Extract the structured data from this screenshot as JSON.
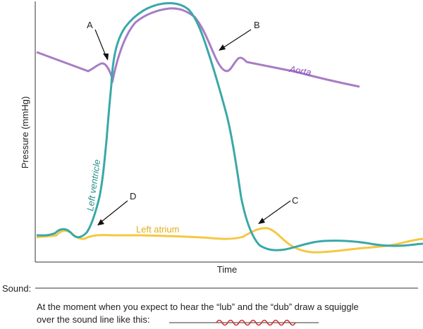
{
  "axes": {
    "ylabel": "Pressure (mmHg)",
    "xlabel": "Time"
  },
  "curves": {
    "aorta": {
      "label": "Aorta",
      "color": "#a87cc5"
    },
    "ventricle": {
      "label": "Left ventricle",
      "color": "#3aa8a8"
    },
    "atrium": {
      "label": "Left atrium",
      "color": "#f5c842"
    }
  },
  "markers": [
    "A",
    "B",
    "C",
    "D"
  ],
  "sound": {
    "label": "Sound:",
    "instruction_line1": "At the moment when you expect to hear the “lub” and the “dub” draw a squiggle",
    "instruction_line2": "over the sound line like this:",
    "squiggle_color": "#d62a2a"
  }
}
